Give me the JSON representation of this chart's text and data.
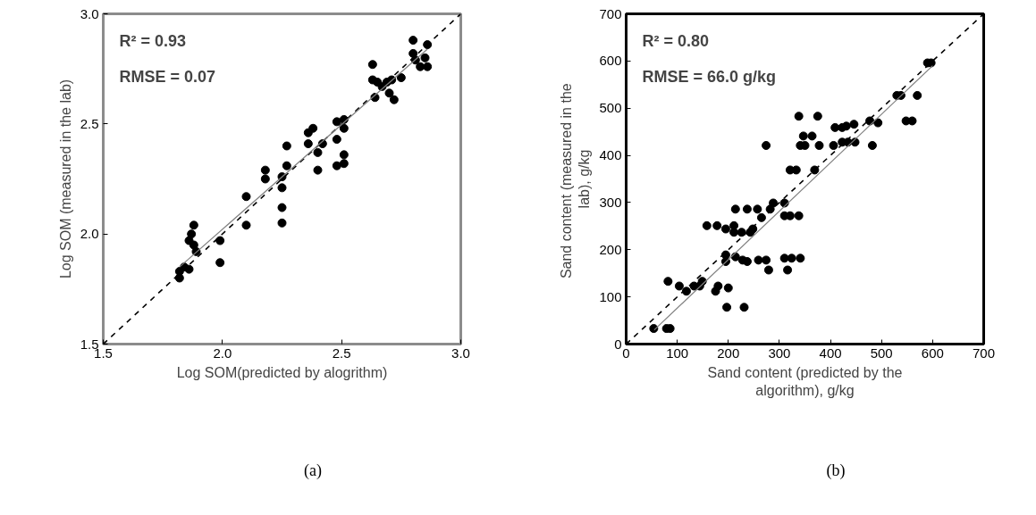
{
  "chart_data": [
    {
      "type": "scatter",
      "xlabel": "Log SOM(predicted by alogrithm)",
      "ylabel": "Log SOM (measured in the lab)",
      "annotations": [
        "R² = 0.93",
        "RMSE = 0.07",
        "(a)"
      ],
      "xlim": [
        1.5,
        3.0
      ],
      "ylim": [
        1.5,
        3.0
      ],
      "xticks": [
        {
          "value": 1.5,
          "label": "1.5"
        },
        {
          "value": 2.0,
          "label": "2.0"
        },
        {
          "value": 2.5,
          "label": "2.5"
        },
        {
          "value": 3.0,
          "label": "3.0"
        }
      ],
      "yticks": [
        {
          "value": 1.5,
          "label": "1.5"
        },
        {
          "value": 2.0,
          "label": "2.0"
        },
        {
          "value": 2.5,
          "label": "2.5"
        },
        {
          "value": 3.0,
          "label": "3.0"
        }
      ],
      "grid": false,
      "marker": "circle",
      "series": [
        {
          "color": "#000000",
          "x": [
            1.82,
            1.82,
            1.84,
            1.86,
            1.86,
            1.87,
            1.88,
            1.88,
            1.89,
            1.99,
            1.99,
            2.1,
            2.1,
            2.18,
            2.18,
            2.25,
            2.25,
            2.25,
            2.25,
            2.27,
            2.27,
            2.36,
            2.36,
            2.38,
            2.4,
            2.4,
            2.42,
            2.48,
            2.48,
            2.48,
            2.51,
            2.51,
            2.51,
            2.51,
            2.63,
            2.63,
            2.64,
            2.65,
            2.67,
            2.69,
            2.7,
            2.71,
            2.72,
            2.75,
            2.8,
            2.8,
            2.81,
            2.83,
            2.85,
            2.86,
            2.86
          ],
          "values": [
            1.8,
            1.83,
            1.85,
            1.84,
            1.97,
            2.0,
            2.04,
            1.95,
            1.92,
            1.97,
            1.87,
            2.17,
            2.04,
            2.29,
            2.25,
            2.26,
            2.21,
            2.12,
            2.05,
            2.4,
            2.31,
            2.46,
            2.41,
            2.48,
            2.37,
            2.29,
            2.41,
            2.51,
            2.43,
            2.31,
            2.52,
            2.48,
            2.36,
            2.32,
            2.77,
            2.7,
            2.62,
            2.69,
            2.67,
            2.69,
            2.64,
            2.7,
            2.61,
            2.71,
            2.88,
            2.82,
            2.79,
            2.76,
            2.8,
            2.86,
            2.76
          ]
        },
        {
          "type": "line",
          "color": "#000000",
          "line_style": "dashed",
          "marker": "none",
          "x": [
            1.5,
            3.0
          ],
          "values": [
            1.5,
            3.0
          ]
        },
        {
          "type": "line",
          "color": "#808080",
          "line_style": "solid",
          "marker": "none",
          "x": [
            1.82,
            2.86
          ],
          "values": [
            1.85,
            2.84
          ]
        }
      ]
    },
    {
      "type": "scatter",
      "xlabel": "Sand content (predicted by the algorithm), g/kg",
      "ylabel": "Sand content  (measured in the lab), g/kg",
      "annotations": [
        "R² = 0.80",
        "RMSE = 66.0 g/kg",
        "(b)"
      ],
      "xlim": [
        0,
        700
      ],
      "ylim": [
        0,
        700
      ],
      "xticks": [
        0,
        100,
        200,
        300,
        400,
        500,
        600,
        700
      ],
      "yticks": [
        0,
        100,
        200,
        300,
        400,
        500,
        600,
        700
      ],
      "grid": false,
      "marker": "circle",
      "series": [
        {
          "color": "#000000",
          "x": [
            54,
            79,
            86,
            82,
            104,
            118,
            133,
            144,
            149,
            175,
            180,
            200,
            197,
            231,
            158,
            178,
            195,
            211,
            211,
            226,
            195,
            195,
            214,
            228,
            237,
            243,
            248,
            214,
            237,
            257,
            265,
            282,
            288,
            259,
            274,
            279,
            310,
            310,
            321,
            338,
            310,
            324,
            341,
            316,
            274,
            321,
            333,
            338,
            375,
            347,
            364,
            341,
            350,
            378,
            369,
            409,
            423,
            431,
            446,
            406,
            423,
            434,
            448,
            482,
            477,
            493,
            530,
            538,
            548,
            560,
            570,
            590,
            597
          ],
          "values": [
            33,
            33,
            33,
            133,
            123,
            112,
            123,
            123,
            133,
            112,
            123,
            119,
            78,
            78,
            251,
            251,
            244,
            251,
            237,
            237,
            189,
            175,
            185,
            178,
            175,
            237,
            244,
            286,
            286,
            286,
            268,
            286,
            299,
            178,
            178,
            157,
            299,
            272,
            272,
            272,
            182,
            182,
            182,
            157,
            421,
            369,
            369,
            483,
            483,
            441,
            441,
            421,
            421,
            421,
            369,
            459,
            459,
            462,
            466,
            421,
            428,
            428,
            428,
            421,
            473,
            469,
            527,
            527,
            473,
            473,
            527,
            596,
            596
          ]
        },
        {
          "type": "line",
          "color": "#000000",
          "line_style": "dashed",
          "marker": "none",
          "x": [
            0,
            700
          ],
          "values": [
            0,
            700
          ]
        },
        {
          "type": "line",
          "color": "#808080",
          "line_style": "solid",
          "marker": "none",
          "x": [
            55,
            600
          ],
          "values": [
            30,
            590
          ]
        }
      ]
    }
  ]
}
